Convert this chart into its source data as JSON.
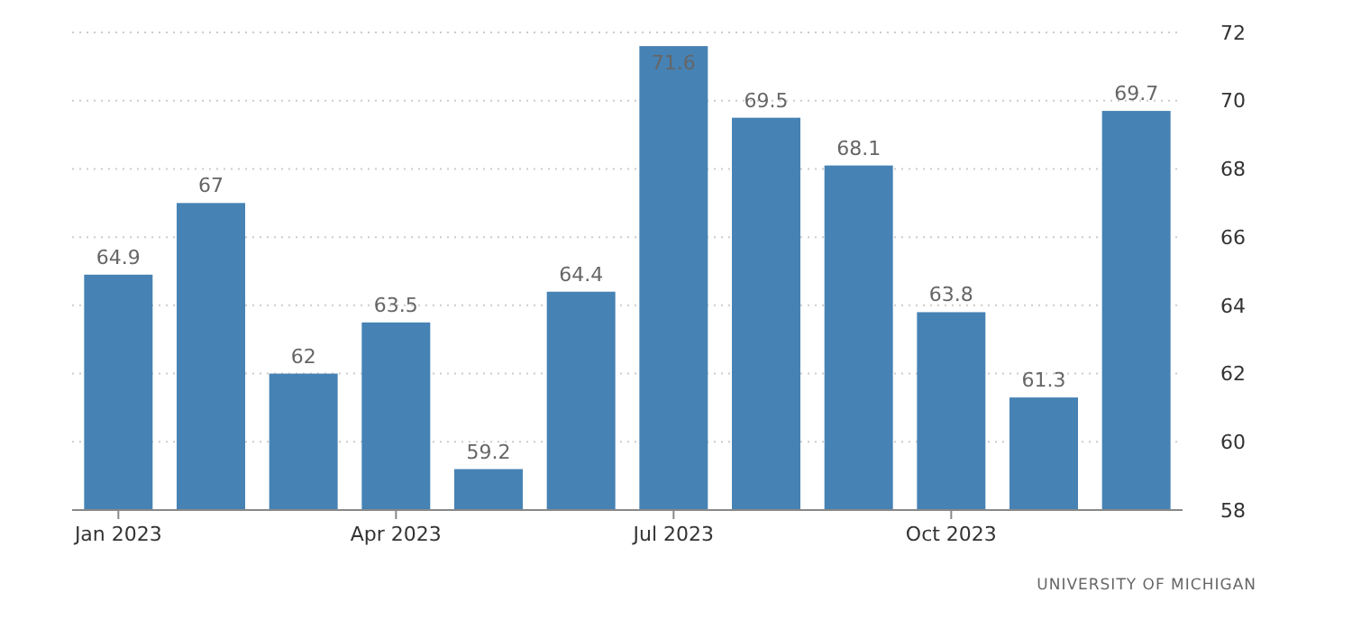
{
  "chart_data": {
    "type": "bar",
    "categories": [
      "Jan 2023",
      null,
      null,
      "Apr 2023",
      null,
      null,
      "Jul 2023",
      null,
      null,
      "Oct 2023",
      null,
      null
    ],
    "values": [
      64.9,
      67,
      62,
      63.5,
      59.2,
      64.4,
      71.6,
      69.5,
      68.1,
      63.8,
      61.3,
      69.7
    ],
    "color": "#4682b4",
    "ylim": [
      58,
      72
    ],
    "yticks": [
      58,
      60,
      62,
      64,
      66,
      68,
      70,
      72
    ],
    "grid": "y",
    "data_labels": true,
    "annotations": [
      "UNIVERSITY OF MICHIGAN"
    ]
  }
}
